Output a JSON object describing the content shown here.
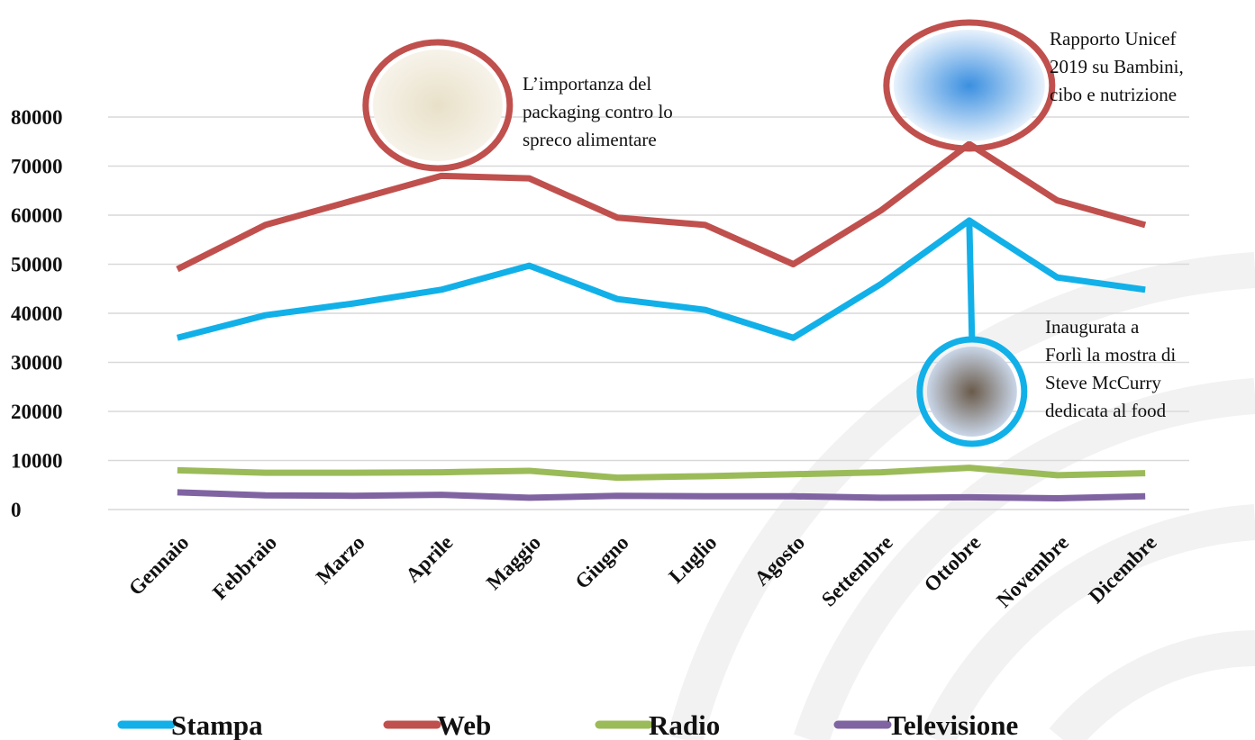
{
  "chart_data": {
    "type": "line",
    "categories": [
      "Gennaio",
      "Febbraio",
      "Marzo",
      "Aprile",
      "Maggio",
      "Giugno",
      "Luglio",
      "Agosto",
      "Settembre",
      "Ottobre",
      "Novembre",
      "Dicembre"
    ],
    "series": [
      {
        "name": "Stampa",
        "color": "#12b0e8",
        "values": [
          35000,
          39600,
          42000,
          44800,
          49700,
          42900,
          40700,
          35000,
          46000,
          58900,
          47300,
          44800
        ]
      },
      {
        "name": "Web",
        "color": "#c0504d",
        "values": [
          49000,
          58000,
          63000,
          68000,
          67500,
          59500,
          58000,
          50000,
          61000,
          74500,
          63000,
          58000
        ]
      },
      {
        "name": "Radio",
        "color": "#9bbb59",
        "values": [
          8000,
          7500,
          7500,
          7600,
          7900,
          6500,
          6800,
          7200,
          7600,
          8500,
          7000,
          7400
        ]
      },
      {
        "name": "Televisione",
        "color": "#8064a2",
        "values": [
          3500,
          2900,
          2800,
          3000,
          2400,
          2800,
          2700,
          2700,
          2400,
          2500,
          2300,
          2700
        ]
      }
    ],
    "ylim": [
      0,
      80000
    ],
    "yticks": [
      0,
      10000,
      20000,
      30000,
      40000,
      50000,
      60000,
      70000,
      80000
    ],
    "grid": true,
    "annotations": [
      {
        "lines": [
          "L’importanza del",
          "packaging contro lo",
          "spreco alimentare"
        ]
      },
      {
        "lines": [
          "Rapporto Unicef",
          "2019 su Bambini,",
          "cibo e nutrizione"
        ]
      },
      {
        "lines": [
          "Inaugurata a",
          "Forlì la mostra di",
          "Steve McCurry",
          "dedicata al food"
        ]
      }
    ]
  }
}
